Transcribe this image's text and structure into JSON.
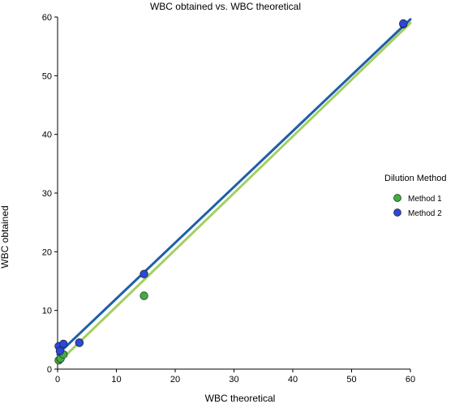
{
  "chart_data": {
    "type": "scatter",
    "title": "WBC obtained vs. WBC theoretical",
    "xlabel": "WBC theoretical",
    "ylabel": "WBC obtained",
    "xlim": [
      0,
      60
    ],
    "ylim": [
      0,
      60
    ],
    "xticks": [
      0,
      10,
      20,
      30,
      40,
      50,
      60
    ],
    "yticks": [
      0,
      10,
      20,
      30,
      40,
      50,
      60
    ],
    "grid": false,
    "legend": {
      "title": "Dilution Method",
      "position": "right"
    },
    "series": [
      {
        "name": "Method 1",
        "color": "#3fae3f",
        "line_color": "#a3cf62",
        "points": [
          [
            0.2,
            1.5
          ],
          [
            0.5,
            1.8
          ],
          [
            1.0,
            2.5
          ],
          [
            3.7,
            4.5
          ],
          [
            14.7,
            12.5
          ],
          [
            58.8,
            58.8
          ]
        ],
        "fit": [
          [
            0,
            1.0
          ],
          [
            60,
            59.0
          ]
        ]
      },
      {
        "name": "Method 2",
        "color": "#2b49d9",
        "line_color": "#1f5fa8",
        "points": [
          [
            0.2,
            3.9
          ],
          [
            0.4,
            3.1
          ],
          [
            1.0,
            4.3
          ],
          [
            3.7,
            4.5
          ],
          [
            14.7,
            16.2
          ],
          [
            58.8,
            58.9
          ]
        ],
        "fit": [
          [
            0,
            2.5
          ],
          [
            60,
            59.6
          ]
        ]
      }
    ]
  }
}
